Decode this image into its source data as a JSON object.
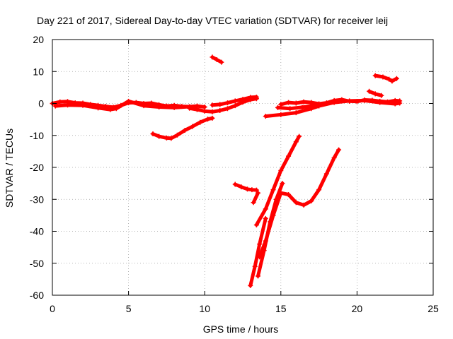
{
  "chart_data": {
    "type": "scatter",
    "title": "Day 221 of 2017, Sidereal Day-to-day VTEC variation (SDTVAR) for receiver leij",
    "xlabel": "GPS time / hours",
    "ylabel": "SDTVAR / TECUs",
    "xlim": [
      0,
      25
    ],
    "ylim": [
      -60,
      20
    ],
    "x_ticks": [
      0,
      5,
      10,
      15,
      20,
      25
    ],
    "y_ticks": [
      -60,
      -50,
      -40,
      -30,
      -20,
      -10,
      0,
      10,
      20
    ],
    "x_tick_labels": [
      "0",
      "5",
      "10",
      "15",
      "20",
      "25"
    ],
    "y_tick_labels": [
      "-60",
      "-50",
      "-40",
      "-30",
      "-20",
      "-10",
      "0",
      "10",
      "20"
    ],
    "grid": true,
    "legend": "none",
    "color": "#ff0000",
    "series": [
      {
        "x": [
          0.0,
          0.5,
          1.0,
          1.5,
          2.0,
          2.5,
          3.0,
          3.5,
          4.0,
          4.5,
          5.0,
          5.5,
          6.0,
          6.5,
          7.0,
          7.5,
          8.0,
          8.5,
          9.0,
          9.5,
          10.0
        ],
        "y": [
          0.0,
          0.5,
          0.6,
          0.2,
          0.1,
          -0.3,
          -0.6,
          -0.9,
          -1.2,
          -0.6,
          0.2,
          0.3,
          0.0,
          0.1,
          -0.4,
          -0.8,
          -0.6,
          -0.9,
          -1.0,
          -0.8,
          -1.1
        ]
      },
      {
        "x": [
          0.2,
          1.0,
          2.0,
          3.0,
          3.8,
          4.2,
          5.0,
          6.0,
          7.0,
          8.0,
          9.0
        ],
        "y": [
          -0.8,
          -0.5,
          -0.6,
          -1.4,
          -1.9,
          -1.6,
          0.7,
          -0.7,
          -1.1,
          -1.3,
          -1.0
        ]
      },
      {
        "x": [
          9.0,
          9.5,
          10.0,
          10.5,
          11.0,
          11.5,
          12.0,
          12.5,
          13.0,
          13.4
        ],
        "y": [
          -1.5,
          -1.9,
          -2.4,
          -2.6,
          -2.2,
          -1.6,
          -0.7,
          0.4,
          1.2,
          1.5
        ]
      },
      {
        "x": [
          10.5,
          11.0,
          11.5,
          12.0,
          12.5,
          13.0,
          13.4
        ],
        "y": [
          -0.5,
          -0.3,
          0.2,
          0.8,
          1.3,
          1.9,
          2.0
        ]
      },
      {
        "x": [
          6.6,
          7.0,
          7.5,
          7.8,
          8.2,
          8.7,
          9.2,
          9.7,
          10.2,
          10.5
        ],
        "y": [
          -9.5,
          -10.3,
          -10.8,
          -10.9,
          -9.9,
          -8.4,
          -7.2,
          -5.9,
          -4.9,
          -4.6
        ]
      },
      {
        "x": [
          10.5,
          10.8,
          11.1
        ],
        "y": [
          14.5,
          13.7,
          12.9
        ]
      },
      {
        "x": [
          12.0,
          12.4,
          12.8,
          13.1,
          13.4
        ],
        "y": [
          -25.3,
          -26.1,
          -26.8,
          -27.0,
          -27.1
        ]
      },
      {
        "x": [
          15.0,
          15.5,
          16.0,
          16.5,
          17.0,
          17.5,
          18.0,
          18.5,
          19.0,
          19.5,
          20.0,
          20.5,
          21.0,
          21.5,
          22.0,
          22.5,
          22.8
        ],
        "y": [
          -0.3,
          0.3,
          0.1,
          0.5,
          0.3,
          -0.1,
          0.2,
          0.9,
          1.2,
          0.7,
          0.6,
          1.1,
          1.0,
          0.7,
          0.5,
          0.9,
          0.8
        ]
      },
      {
        "x": [
          14.0,
          15.0,
          16.0,
          17.0,
          17.5,
          18.5,
          19.5,
          20.5,
          21.5,
          22.5,
          22.8
        ],
        "y": [
          -4.0,
          -3.5,
          -2.9,
          -1.6,
          -0.8,
          0.3,
          0.8,
          0.9,
          0.3,
          -0.1,
          0.1
        ]
      },
      {
        "x": [
          14.8,
          15.6,
          16.4,
          17.2
        ],
        "y": [
          -1.3,
          -1.6,
          -1.2,
          -0.6
        ]
      },
      {
        "x": [
          21.2,
          21.7,
          22.1,
          22.3,
          22.6
        ],
        "y": [
          8.7,
          8.3,
          7.6,
          7.0,
          7.8
        ]
      },
      {
        "x": [
          20.8,
          21.2,
          21.6
        ],
        "y": [
          3.8,
          3.0,
          2.5
        ]
      },
      {
        "x": [
          13.4,
          14.0,
          14.5,
          15.0,
          15.5,
          16.0,
          16.2
        ],
        "y": [
          -38.0,
          -33.0,
          -27.0,
          -21.0,
          -16.5,
          -12.0,
          -10.3
        ]
      },
      {
        "x": [
          13.5,
          13.9,
          14.3,
          14.7,
          15.1
        ],
        "y": [
          -54.0,
          -46.0,
          -37.0,
          -30.0,
          -25.0
        ]
      },
      {
        "x": [
          13.6,
          14.0,
          14.5,
          15.0,
          15.5,
          16.0,
          16.5,
          17.0,
          17.5,
          18.0,
          18.5,
          18.8
        ],
        "y": [
          -48.0,
          -43.0,
          -35.0,
          -28.0,
          -28.5,
          -31.0,
          -31.8,
          -30.5,
          -27.0,
          -22.0,
          -17.0,
          -14.5
        ]
      },
      {
        "x": [
          13.0,
          13.3,
          13.6,
          14.0
        ],
        "y": [
          -57.0,
          -51.0,
          -44.0,
          -36.0
        ]
      },
      {
        "x": [
          13.2,
          13.5
        ],
        "y": [
          -31.0,
          -28.0
        ]
      }
    ]
  }
}
